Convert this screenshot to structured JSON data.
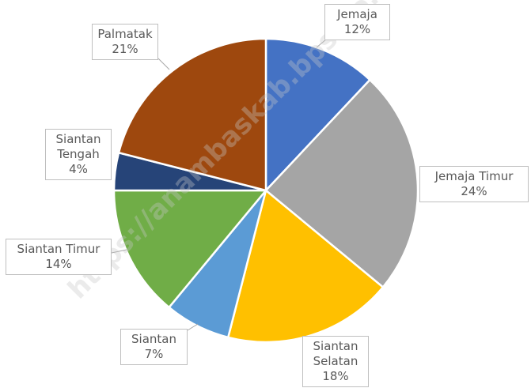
{
  "chart_data": {
    "type": "pie",
    "categories": [
      "Jemaja",
      "Jemaja Timur",
      "Siantan Selatan",
      "Siantan",
      "Siantan Timur",
      "Siantan Tengah",
      "Palmatak"
    ],
    "values": [
      12,
      24,
      18,
      7,
      14,
      4,
      21
    ],
    "value_labels": [
      "12%",
      "24%",
      "18%",
      "7%",
      "14%",
      "4%",
      "21%"
    ],
    "colors": [
      "#4472c4",
      "#a5a5a5",
      "#ffc000",
      "#5b9bd5",
      "#70ad47",
      "#264478",
      "#9e480e"
    ],
    "watermark": "https://anambaskab.bps.go.id"
  }
}
